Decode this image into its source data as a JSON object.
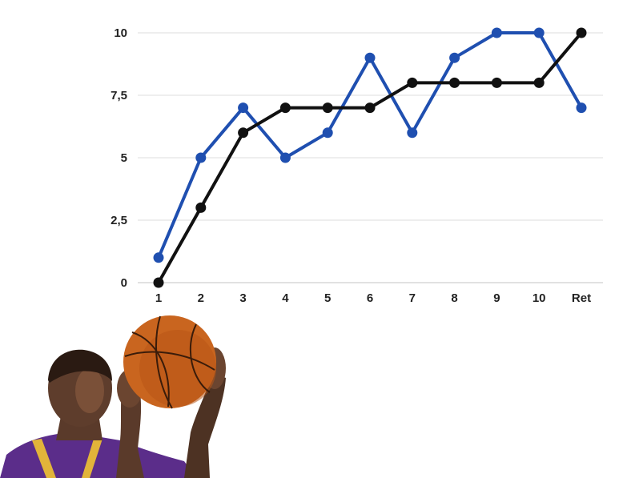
{
  "chart_data": {
    "type": "line",
    "title": "",
    "xlabel": "",
    "ylabel": "",
    "categories": [
      "1",
      "2",
      "3",
      "4",
      "5",
      "6",
      "7",
      "8",
      "9",
      "10",
      "Ret"
    ],
    "series": [
      {
        "color": "#1f4fb0",
        "values": [
          1,
          5,
          7,
          5,
          6,
          9,
          6,
          9,
          10,
          10,
          7
        ]
      },
      {
        "color": "#111111",
        "values": [
          0,
          3,
          6,
          7,
          7,
          7,
          8,
          8,
          8,
          8,
          10
        ]
      }
    ],
    "ylim": [
      0,
      10
    ],
    "yticks": [
      0,
      2.5,
      5,
      7.5,
      10
    ],
    "ytick_labels": [
      "0",
      "2,5",
      "5",
      "7,5",
      "10"
    ],
    "grid": true,
    "legend": "none"
  },
  "photo": {
    "description_icon": "basketball-player-photo",
    "ball_color": "#c9651f",
    "jersey_color": "#5b2d8a"
  }
}
